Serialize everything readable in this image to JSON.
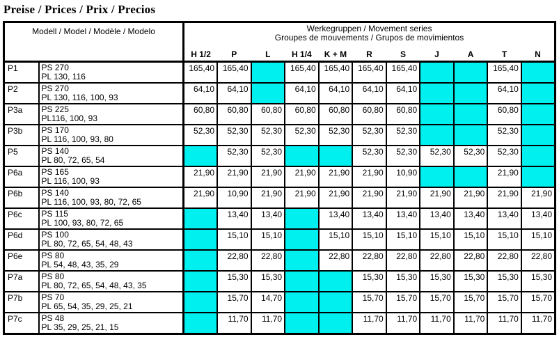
{
  "title": "Preise / Prices / Prix / Precios",
  "colors": {
    "highlight": "#00F0F0"
  },
  "table": {
    "model_header": "Modell / Model / Modèle / Modelo",
    "group_header": {
      "line1": "Werkegruppen / Movement series",
      "line2": "Groupes de mouvements / Grupos de movimientos"
    },
    "columns": [
      "H 1/2",
      "P",
      "L",
      "H 1/4",
      "K + M",
      "R",
      "S",
      "J",
      "A",
      "T",
      "N"
    ],
    "rows": [
      {
        "code": "P1",
        "ps": "PS 270",
        "pl": "PL 130, 116",
        "prices": [
          "165,40",
          "165,40",
          null,
          "165,40",
          "165,40",
          "165,40",
          "165,40",
          null,
          null,
          "165,40",
          null
        ]
      },
      {
        "code": "P2",
        "ps": "PS 270",
        "pl": "PL 130, 116, 100, 93",
        "prices": [
          "64,10",
          "64,10",
          null,
          "64,10",
          "64,10",
          "64,10",
          "64,10",
          null,
          null,
          "64,10",
          null
        ]
      },
      {
        "code": "P3a",
        "ps": "PS 225",
        "pl": "PL116, 100, 93",
        "prices": [
          "60,80",
          "60,80",
          "60,80",
          "60,80",
          "60,80",
          "60,80",
          "60,80",
          null,
          null,
          "60,80",
          null
        ]
      },
      {
        "code": "P3b",
        "ps": "PS 170",
        "pl": "PL 116, 100, 93, 80",
        "prices": [
          "52,30",
          "52,30",
          "52,30",
          "52,30",
          "52,30",
          "52,30",
          "52,30",
          null,
          null,
          "52,30",
          null
        ]
      },
      {
        "code": "P5",
        "ps": "PS 140",
        "pl": "PL 80, 72, 65, 54",
        "prices": [
          null,
          "52,30",
          "52,30",
          null,
          null,
          "52,30",
          "52,30",
          "52,30",
          "52,30",
          "52,30",
          null
        ]
      },
      {
        "code": "P6a",
        "ps": "PS 165",
        "pl": "PL 116, 100, 93",
        "prices": [
          "21,90",
          "21,90",
          "21,90",
          "21,90",
          "21,90",
          "21,90",
          "10,90",
          null,
          null,
          "21,90",
          null
        ]
      },
      {
        "code": "P6b",
        "ps": "PS 140",
        "pl": "PL 116, 100, 93, 80, 72, 65",
        "prices": [
          "21,90",
          "10,90",
          "21,90",
          "21,90",
          "21,90",
          "21,90",
          "21,90",
          "21,90",
          "21,90",
          "21,90",
          "21,90"
        ]
      },
      {
        "code": "P6c",
        "ps": "PS 115",
        "pl": "PL 100, 93, 80, 72, 65",
        "prices": [
          null,
          "13,40",
          "13,40",
          null,
          "13,40",
          "13,40",
          "13,40",
          "13,40",
          "13,40",
          "13,40",
          "13,40"
        ]
      },
      {
        "code": "P6d",
        "ps": "PS 100",
        "pl": "PL 80, 72, 65, 54, 48, 43",
        "prices": [
          null,
          "15,10",
          "15,10",
          null,
          "15,10",
          "15,10",
          "15,10",
          "15,10",
          "15,10",
          "15,10",
          "15,10"
        ]
      },
      {
        "code": "P6e",
        "ps": "PS 80",
        "pl": "PL 54, 48, 43, 35, 29",
        "prices": [
          null,
          "22,80",
          "22,80",
          null,
          "22,80",
          "22,80",
          "22,80",
          "22,80",
          "22,80",
          "22,80",
          "22,80"
        ]
      },
      {
        "code": "P7a",
        "ps": "PS 80",
        "pl": "PL 80, 72, 65, 54, 48, 43, 35",
        "prices": [
          null,
          "15,30",
          "15,30",
          null,
          null,
          "15,30",
          "15,30",
          "15,30",
          "15,30",
          "15,30",
          "15,30"
        ]
      },
      {
        "code": "P7b",
        "ps": "PS 70",
        "pl": "PL 65, 54, 35, 29, 25, 21",
        "prices": [
          null,
          "15,70",
          "14,70",
          null,
          null,
          "15,70",
          "15,70",
          "15,70",
          "15,70",
          "15,70",
          "15,70"
        ]
      },
      {
        "code": "P7c",
        "ps": "PS 48",
        "pl": "PL 35, 29, 25, 21, 15",
        "prices": [
          null,
          "11,70",
          "11,70",
          null,
          null,
          "11,70",
          "11,70",
          "11,70",
          "11,70",
          "11,70",
          "11,70"
        ]
      }
    ]
  }
}
